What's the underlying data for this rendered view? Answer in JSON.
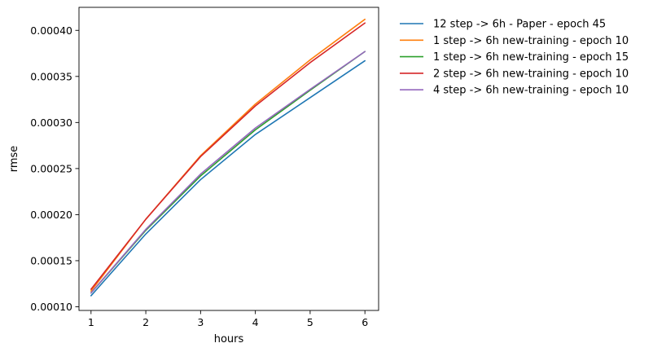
{
  "chart_data": {
    "type": "line",
    "title": "",
    "xlabel": "hours",
    "ylabel": "rmse",
    "x": [
      1,
      2,
      3,
      4,
      5,
      6
    ],
    "xlim": [
      0.78,
      6.25
    ],
    "ylim": [
      9.6e-05,
      0.000425
    ],
    "xticks": [
      1,
      2,
      3,
      4,
      5,
      6
    ],
    "xtick_labels": [
      "1",
      "2",
      "3",
      "4",
      "5",
      "6"
    ],
    "yticks": [
      0.0001,
      0.00015,
      0.0002,
      0.00025,
      0.0003,
      0.00035,
      0.0004
    ],
    "ytick_labels": [
      "0.00010",
      "0.00015",
      "0.00020",
      "0.00025",
      "0.00030",
      "0.00035",
      "0.00040"
    ],
    "grid": false,
    "legend_position": "outside-right",
    "series": [
      {
        "name": "12 step -> 6h - Paper - epoch 45",
        "color": "#1f77b4",
        "values": [
          0.000112,
          0.000179,
          0.000238,
          0.000287,
          0.000327,
          0.000367
        ]
      },
      {
        "name": "1 step -> 6h new-training - epoch 10",
        "color": "#ff7f0e",
        "values": [
          0.000117,
          0.000195,
          0.000264,
          0.00032,
          0.000368,
          0.000412
        ]
      },
      {
        "name": "1 step -> 6h new-training - epoch 15",
        "color": "#2ca02c",
        "values": [
          0.000115,
          0.000183,
          0.000242,
          0.000292,
          0.000335,
          0.000377
        ]
      },
      {
        "name": "2 step -> 6h new-training - epoch 10",
        "color": "#d62728",
        "values": [
          0.000119,
          0.000195,
          0.000263,
          0.000318,
          0.000365,
          0.000408
        ]
      },
      {
        "name": "4 step -> 6h new-training - epoch 10",
        "color": "#9467bd",
        "values": [
          0.000115,
          0.000184,
          0.000244,
          0.000294,
          0.000336,
          0.000377
        ]
      }
    ]
  }
}
